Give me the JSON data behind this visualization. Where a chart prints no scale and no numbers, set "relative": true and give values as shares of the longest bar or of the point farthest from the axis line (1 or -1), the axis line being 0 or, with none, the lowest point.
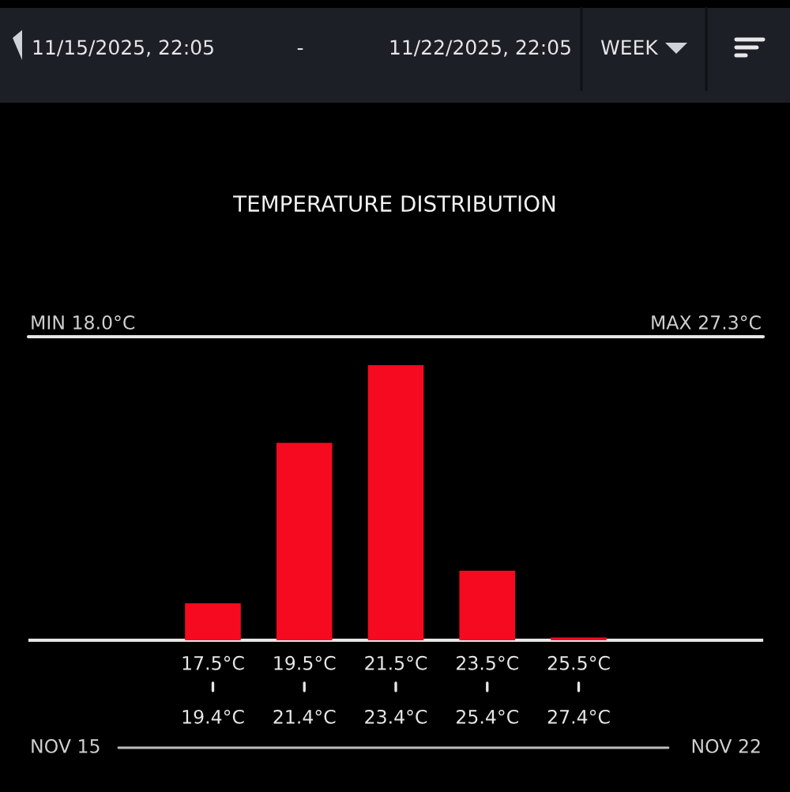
{
  "chart_data": {
    "type": "bar",
    "title": "TEMPERATURE DISTRIBUTION",
    "x": [
      17.5,
      19.5,
      21.5,
      23.5,
      25.5
    ],
    "xlim": [
      13.5,
      29.5
    ],
    "xticks": [
      {
        "value": 17.5,
        "label": "17.5°C"
      },
      {
        "value": 19.5,
        "label": "19.5°C"
      },
      {
        "value": 21.5,
        "label": "21.5°C"
      },
      {
        "value": 23.5,
        "label": "23.5°C"
      },
      {
        "value": 25.5,
        "label": "25.5°C"
      }
    ],
    "x2lim": [
      15.4,
      31.4
    ],
    "x2ticks": [
      {
        "value": 19.4,
        "label": "19.4°C"
      },
      {
        "value": 21.4,
        "label": "21.4°C"
      },
      {
        "value": 23.4,
        "label": "23.4°C"
      },
      {
        "value": 25.4,
        "label": "25.4°C"
      },
      {
        "value": 27.4,
        "label": "27.4°C"
      }
    ],
    "values": [
      0.134,
      0.718,
      1,
      0.253,
      0.01
    ],
    "color": "#f50a1f",
    "relative": true,
    "grid": false,
    "annotations": [
      "11/15/2025, 22:05",
      "-",
      "11/22/2025, 22:05",
      "WEEK",
      "MIN 18.0°C",
      "MAX 27.3°C",
      "NOV 15",
      "NOV 22"
    ]
  }
}
